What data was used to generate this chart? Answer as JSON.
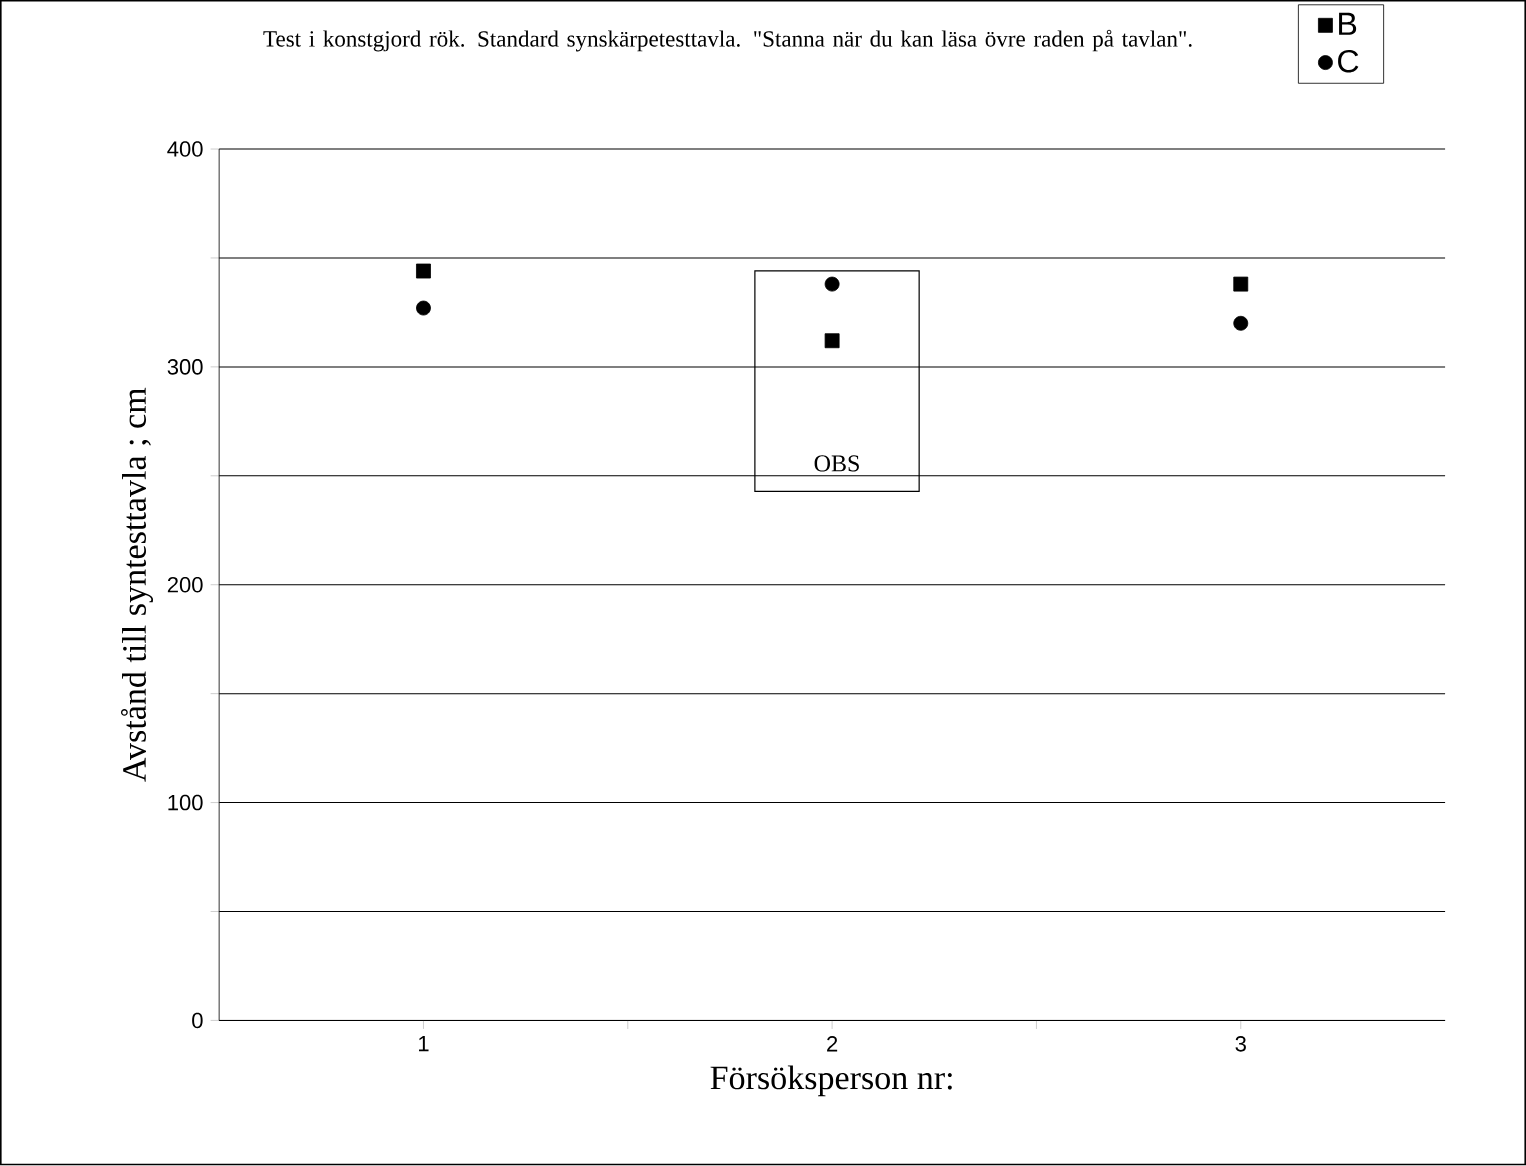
{
  "chart_data": {
    "type": "scatter",
    "xlabel": "Försöksperson nr:",
    "ylabel": "Avstånd till syntesttavla ; cm",
    "x": [
      1,
      2,
      3
    ],
    "series": [
      {
        "name": "B",
        "color": "#000000",
        "marker": "square",
        "values": [
          344,
          312,
          338
        ]
      },
      {
        "name": "C",
        "color": "#000000",
        "marker": "circle",
        "values": [
          327,
          338,
          320
        ]
      }
    ],
    "xlim": [
      0.5,
      3.5
    ],
    "xticks": [
      1,
      {
        "value": 1.5,
        "label": null
      },
      2,
      {
        "value": 2.5,
        "label": null
      },
      3
    ],
    "ylim": [
      0,
      400
    ],
    "yticks": [
      0,
      {
        "value": 50,
        "label": null
      },
      100,
      {
        "value": 150,
        "label": null
      },
      200,
      {
        "value": 250,
        "label": null
      },
      300,
      {
        "value": 350,
        "label": null
      },
      400
    ],
    "grid": "y",
    "legend": "top right",
    "annotations": [
      "Test i konstgjord rök. Standard synskärpetesttavla. \"Stanna när du kan läsa övre raden på tavlan\".",
      "OBS"
    ]
  }
}
